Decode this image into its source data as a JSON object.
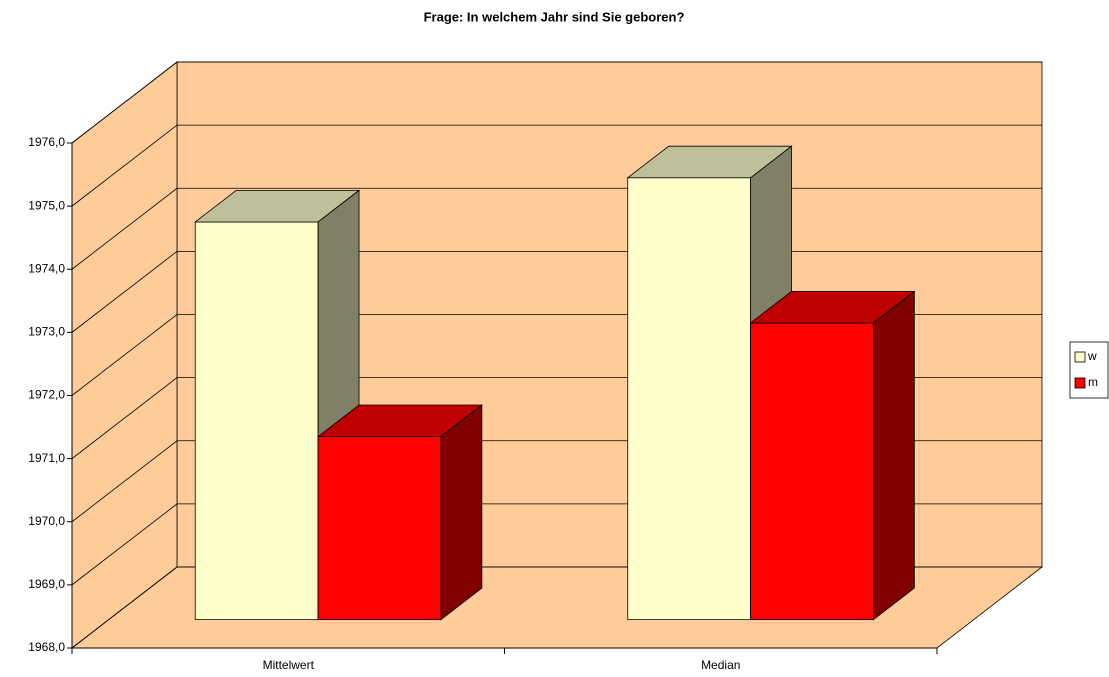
{
  "chart_data": {
    "type": "bar3d",
    "title": "Frage: In welchem Jahr sind Sie geboren?",
    "categories": [
      "Mittelwert",
      "Median"
    ],
    "series": [
      {
        "name": "w",
        "color": "#ffffcc",
        "values": [
          1974.3,
          1975.0
        ]
      },
      {
        "name": "m",
        "color": "#ff0000",
        "values": [
          1970.9,
          1972.7
        ]
      }
    ],
    "ylim": [
      1968,
      1976
    ],
    "yticks": [
      {
        "value": 1968,
        "label": "1968,0"
      },
      {
        "value": 1969,
        "label": "1969,0"
      },
      {
        "value": 1970,
        "label": "1970,0"
      },
      {
        "value": 1971,
        "label": "1971,0"
      },
      {
        "value": 1972,
        "label": "1972,0"
      },
      {
        "value": 1973,
        "label": "1973,0"
      },
      {
        "value": 1974,
        "label": "1974,0"
      },
      {
        "value": 1975,
        "label": "1975,0"
      },
      {
        "value": 1976,
        "label": "1976,0"
      }
    ],
    "grid": true,
    "wall_color": "#ffcc99",
    "legend": "right"
  }
}
